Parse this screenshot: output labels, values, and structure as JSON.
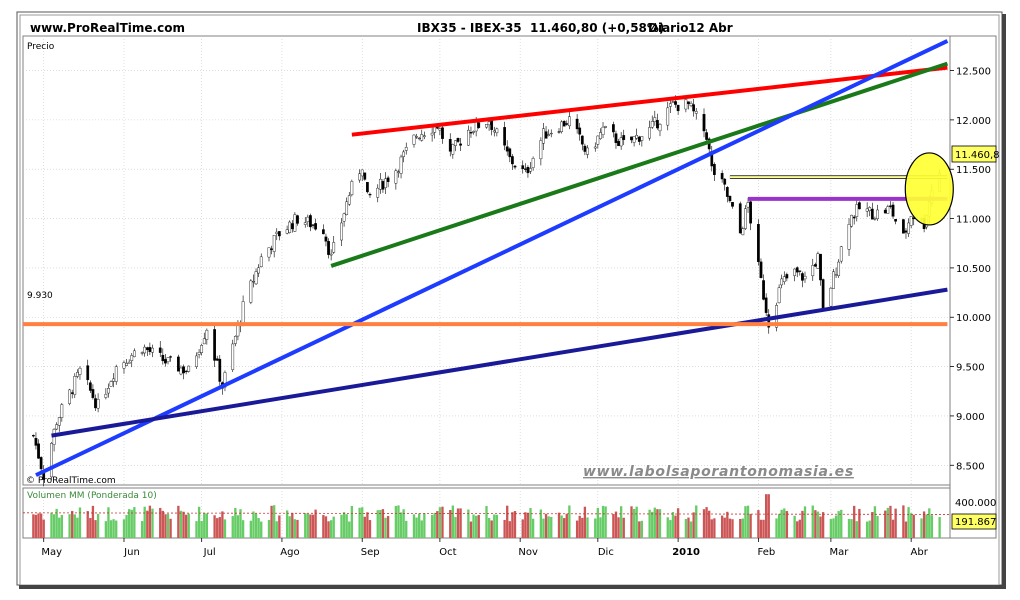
{
  "header": {
    "site": "www.ProRealTime.com",
    "instrument": "IBX35 - IBEX-35",
    "last": "11.460,80 (+0,58%)",
    "period": "Diario",
    "date": "12 Abr"
  },
  "price_panel": {
    "label": "Precio",
    "copyright": "© ProRealTime.com",
    "watermark": "www.labolsaporantonomasia.es",
    "current_value": "11.460,8",
    "level_label": "9.930"
  },
  "volume_panel": {
    "label": "Volumen MM (Ponderada 10)",
    "current_value": "191.867",
    "tick": "400.000"
  },
  "colors": {
    "background": "#ffffff",
    "up": "#66cc66",
    "down": "#cc5555",
    "red_line": "#ff0000",
    "green_line": "#1a7a1a",
    "blue_line": "#1e3cff",
    "navy_line": "#1a1a99",
    "orange_line": "#ff8040",
    "purple_line": "#9933cc",
    "highlight": "#ffff33"
  },
  "chart_data": {
    "type": "candlestick",
    "x_ticks": [
      "May",
      "Jun",
      "Jul",
      "Ago",
      "Sep",
      "Oct",
      "Nov",
      "Dic",
      "2010",
      "Feb",
      "Mar",
      "Abr"
    ],
    "y_ticks": [
      "12.500",
      "12.000",
      "11.500",
      "11.000",
      "10.500",
      "10.000",
      "9.500",
      "9.000",
      "8.500"
    ],
    "y_range": [
      8300,
      12850
    ],
    "anchors": [
      [
        "2009-04-27",
        8800
      ],
      [
        "2009-05-01",
        8400
      ],
      [
        "2009-05-06",
        8950
      ],
      [
        "2009-05-15",
        9450
      ],
      [
        "2009-05-22",
        9100
      ],
      [
        "2009-05-29",
        9500
      ],
      [
        "2009-06-08",
        9700
      ],
      [
        "2009-06-17",
        9550
      ],
      [
        "2009-06-26",
        9450
      ],
      [
        "2009-07-03",
        9900
      ],
      [
        "2009-07-09",
        9300
      ],
      [
        "2009-07-17",
        10100
      ],
      [
        "2009-07-24",
        10600
      ],
      [
        "2009-07-31",
        10850
      ],
      [
        "2009-08-07",
        11000
      ],
      [
        "2009-08-17",
        10900
      ],
      [
        "2009-08-20",
        10600
      ],
      [
        "2009-08-27",
        11250
      ],
      [
        "2009-09-01",
        11550
      ],
      [
        "2009-09-03",
        11200
      ],
      [
        "2009-09-14",
        11500
      ],
      [
        "2009-09-22",
        11850
      ],
      [
        "2009-09-30",
        11950
      ],
      [
        "2009-10-05",
        11650
      ],
      [
        "2009-10-12",
        11900
      ],
      [
        "2009-10-20",
        12000
      ],
      [
        "2009-10-28",
        11600
      ],
      [
        "2009-11-03",
        11450
      ],
      [
        "2009-11-10",
        11850
      ],
      [
        "2009-11-20",
        12000
      ],
      [
        "2009-11-27",
        11650
      ],
      [
        "2009-12-03",
        11900
      ],
      [
        "2009-12-11",
        11750
      ],
      [
        "2009-12-21",
        11900
      ],
      [
        "2009-12-30",
        12150
      ],
      [
        "2010-01-05",
        12150
      ],
      [
        "2010-01-12",
        11850
      ],
      [
        "2010-01-14",
        11500
      ],
      [
        "2010-01-19",
        11300
      ],
      [
        "2010-01-25",
        10850
      ],
      [
        "2010-01-28",
        11150
      ],
      [
        "2010-02-01",
        10500
      ],
      [
        "2010-02-05",
        9950
      ],
      [
        "2010-02-10",
        10350
      ],
      [
        "2010-02-15",
        10450
      ],
      [
        "2010-02-19",
        10400
      ],
      [
        "2010-02-24",
        10600
      ],
      [
        "2010-02-26",
        10050
      ],
      [
        "2010-03-03",
        10500
      ],
      [
        "2010-03-08",
        11000
      ],
      [
        "2010-03-12",
        11100
      ],
      [
        "2010-03-18",
        11050
      ],
      [
        "2010-03-24",
        11100
      ],
      [
        "2010-03-29",
        10800
      ],
      [
        "2010-04-01",
        11050
      ],
      [
        "2010-04-06",
        10950
      ],
      [
        "2010-04-09",
        11300
      ],
      [
        "2010-04-12",
        11460.8
      ]
    ],
    "volume": {
      "range_max": 420000,
      "last": 191867
    },
    "lines": [
      {
        "name": "red",
        "color": "#ff0000",
        "from": [
          "2009-08-28",
          11850
        ],
        "to": [
          "2010-04-15",
          12530
        ]
      },
      {
        "name": "green",
        "color": "#1a7a1a",
        "from": [
          "2009-08-20",
          10520
        ],
        "to": [
          "2010-04-15",
          12570
        ]
      },
      {
        "name": "blue",
        "color": "#1e3cff",
        "from": [
          "2009-04-28",
          8400
        ],
        "to": [
          "2010-04-15",
          12800
        ]
      },
      {
        "name": "navy",
        "color": "#1a1a99",
        "from": [
          "2009-05-04",
          8800
        ],
        "to": [
          "2010-04-15",
          10280
        ]
      },
      {
        "name": "orange",
        "color": "#ff8040",
        "from": [
          "2009-04-23",
          9930
        ],
        "to": [
          "2010-04-15",
          9930
        ]
      },
      {
        "name": "purple",
        "color": "#9933cc",
        "from": [
          "2010-01-28",
          11200
        ],
        "to": [
          "2010-04-15",
          11200
        ]
      },
      {
        "name": "yellow",
        "color": "#ffff99",
        "from": [
          "2010-01-21",
          11420
        ],
        "to": [
          "2010-04-15",
          11420
        ]
      }
    ],
    "circle": {
      "date": "2010-04-08",
      "value": 11300
    }
  }
}
